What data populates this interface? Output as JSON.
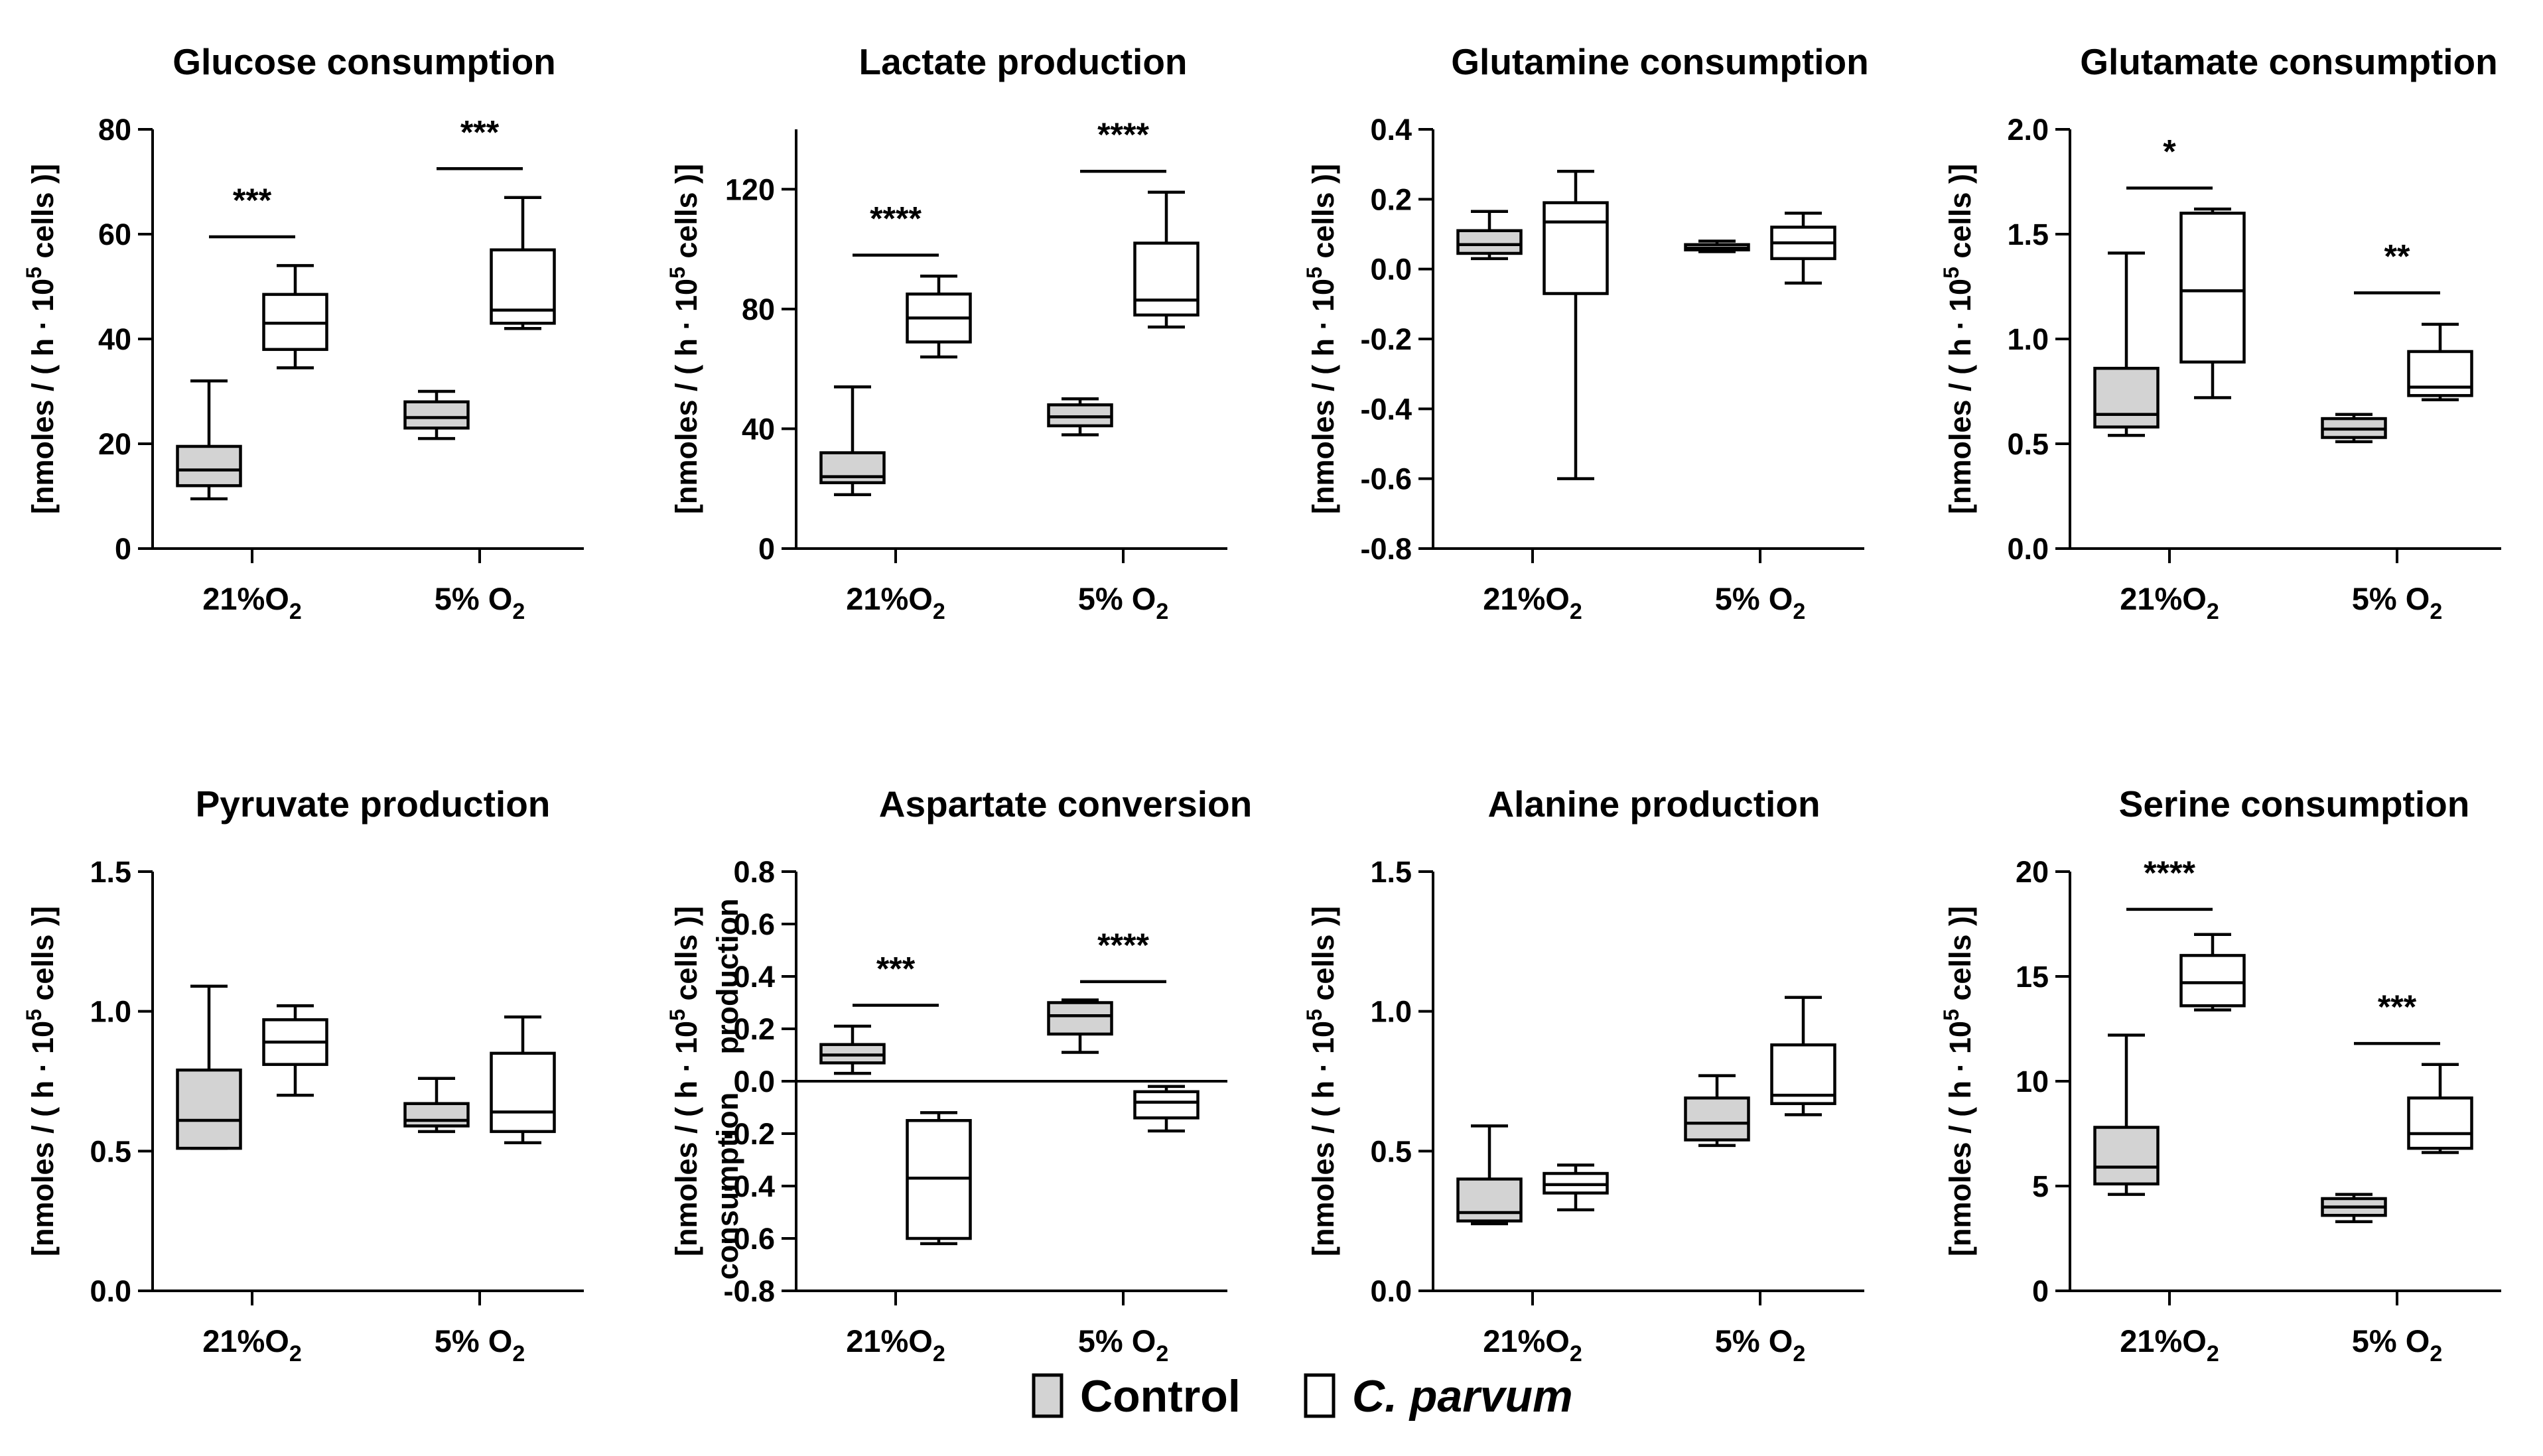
{
  "legend": {
    "control_label": "Control",
    "cparvum_label": "C. parvum",
    "control_color": "#d3d3d3",
    "cparvum_color": "#ffffff"
  },
  "chart_data": [
    {
      "type": "boxplot",
      "title": "Glucose consumption",
      "ylabel": "[nmoles / ( h · 10^5 cells )]",
      "ylim": [
        0,
        80
      ],
      "yticks": [
        0,
        20,
        40,
        60,
        80
      ],
      "ytick_labels": [
        "0",
        "20",
        "40",
        "60",
        "80"
      ],
      "categories": [
        "21%O2",
        "5% O2"
      ],
      "series": [
        {
          "name": "Control",
          "boxes": [
            {
              "min": 9.5,
              "q1": 12,
              "median": 15,
              "q3": 19.5,
              "max": 32
            },
            {
              "min": 21,
              "q1": 23,
              "median": 25,
              "q3": 28,
              "max": 30
            }
          ]
        },
        {
          "name": "C. parvum",
          "boxes": [
            {
              "min": 34.5,
              "q1": 38,
              "median": 43,
              "q3": 48.5,
              "max": 54
            },
            {
              "min": 42,
              "q1": 43,
              "median": 45.5,
              "q3": 57,
              "max": 67
            }
          ]
        }
      ],
      "significance": [
        {
          "category": 0,
          "label": "***",
          "y": 59.5
        },
        {
          "category": 1,
          "label": "***",
          "y": 72.5
        }
      ],
      "zero_line": false
    },
    {
      "type": "boxplot",
      "title": "Lactate production",
      "ylabel": "[nmoles / ( h · 10^5 cells )]",
      "ylim": [
        0,
        140
      ],
      "yticks": [
        0,
        40,
        80,
        120
      ],
      "ytick_labels": [
        "0",
        "40",
        "80",
        "120"
      ],
      "categories": [
        "21%O2",
        "5% O2"
      ],
      "series": [
        {
          "name": "Control",
          "boxes": [
            {
              "min": 18,
              "q1": 22,
              "median": 24,
              "q3": 32,
              "max": 54
            },
            {
              "min": 38,
              "q1": 41,
              "median": 44,
              "q3": 48,
              "max": 50
            }
          ]
        },
        {
          "name": "C. parvum",
          "boxes": [
            {
              "min": 64,
              "q1": 69,
              "median": 77,
              "q3": 85,
              "max": 91
            },
            {
              "min": 74,
              "q1": 78,
              "median": 83,
              "q3": 102,
              "max": 119
            }
          ]
        }
      ],
      "significance": [
        {
          "category": 0,
          "label": "****",
          "y": 98
        },
        {
          "category": 1,
          "label": "****",
          "y": 126
        }
      ],
      "zero_line": false
    },
    {
      "type": "boxplot",
      "title": "Glutamine consumption",
      "ylabel": "[nmoles / ( h · 10^5 cells )]",
      "ylim": [
        -0.8,
        0.4
      ],
      "yticks": [
        -0.8,
        -0.6,
        -0.4,
        -0.2,
        0.0,
        0.2,
        0.4
      ],
      "ytick_labels": [
        "-0.8",
        "-0.6",
        "-0.4",
        "-0.2",
        "0.0",
        "0.2",
        "0.4"
      ],
      "categories": [
        "21%O2",
        "5% O2"
      ],
      "series": [
        {
          "name": "Control",
          "boxes": [
            {
              "min": 0.03,
              "q1": 0.045,
              "median": 0.07,
              "q3": 0.11,
              "max": 0.165
            },
            {
              "min": 0.05,
              "q1": 0.055,
              "median": 0.06,
              "q3": 0.07,
              "max": 0.08
            }
          ]
        },
        {
          "name": "C. parvum",
          "boxes": [
            {
              "min": -0.6,
              "q1": -0.07,
              "median": 0.135,
              "q3": 0.19,
              "max": 0.28
            },
            {
              "min": -0.04,
              "q1": 0.03,
              "median": 0.075,
              "q3": 0.12,
              "max": 0.16
            }
          ]
        }
      ],
      "significance": [],
      "zero_line": false
    },
    {
      "type": "boxplot",
      "title": "Glutamate consumption",
      "ylabel": "[nmoles / ( h · 10^5 cells )]",
      "ylim": [
        0,
        2.0
      ],
      "yticks": [
        0,
        0.5,
        1.0,
        1.5,
        2.0
      ],
      "ytick_labels": [
        "0.0",
        "0.5",
        "1.0",
        "1.5",
        "2.0"
      ],
      "categories": [
        "21%O2",
        "5% O2"
      ],
      "series": [
        {
          "name": "Control",
          "boxes": [
            {
              "min": 0.54,
              "q1": 0.58,
              "median": 0.64,
              "q3": 0.86,
              "max": 1.41
            },
            {
              "min": 0.51,
              "q1": 0.53,
              "median": 0.57,
              "q3": 0.62,
              "max": 0.64
            }
          ]
        },
        {
          "name": "C. parvum",
          "boxes": [
            {
              "min": 0.72,
              "q1": 0.89,
              "median": 1.23,
              "q3": 1.6,
              "max": 1.62
            },
            {
              "min": 0.71,
              "q1": 0.73,
              "median": 0.77,
              "q3": 0.94,
              "max": 1.07
            }
          ]
        }
      ],
      "significance": [
        {
          "category": 0,
          "label": "*",
          "y": 1.72
        },
        {
          "category": 1,
          "label": "**",
          "y": 1.22
        }
      ],
      "zero_line": false
    },
    {
      "type": "boxplot",
      "title": "Pyruvate production",
      "ylabel": "[nmoles / ( h · 10^5 cells )]",
      "ylim": [
        0,
        1.5
      ],
      "yticks": [
        0,
        0.5,
        1.0,
        1.5
      ],
      "ytick_labels": [
        "0.0",
        "0.5",
        "1.0",
        "1.5"
      ],
      "categories": [
        "21%O2",
        "5% O2"
      ],
      "series": [
        {
          "name": "Control",
          "boxes": [
            {
              "min": 0.51,
              "q1": 0.51,
              "median": 0.61,
              "q3": 0.79,
              "max": 1.09
            },
            {
              "min": 0.57,
              "q1": 0.59,
              "median": 0.61,
              "q3": 0.67,
              "max": 0.76
            }
          ]
        },
        {
          "name": "C. parvum",
          "boxes": [
            {
              "min": 0.7,
              "q1": 0.81,
              "median": 0.89,
              "q3": 0.97,
              "max": 1.02
            },
            {
              "min": 0.53,
              "q1": 0.57,
              "median": 0.64,
              "q3": 0.85,
              "max": 0.98
            }
          ]
        }
      ],
      "significance": [],
      "zero_line": false
    },
    {
      "type": "boxplot",
      "title": "Aspartate conversion",
      "ylabel": "[nmoles / ( h · 10^5 cells )]",
      "ylabel_upper": "production",
      "ylabel_lower": "consumption",
      "ylim": [
        -0.8,
        0.8
      ],
      "yticks": [
        -0.8,
        -0.6,
        -0.4,
        -0.2,
        0.0,
        0.2,
        0.4,
        0.6,
        0.8
      ],
      "ytick_labels": [
        "-0.8",
        "-0.6",
        "-0.4",
        "-0.2",
        "0.0",
        "0.2",
        "0.4",
        "0.6",
        "0.8"
      ],
      "categories": [
        "21%O2",
        "5% O2"
      ],
      "series": [
        {
          "name": "Control",
          "boxes": [
            {
              "min": 0.03,
              "q1": 0.07,
              "median": 0.1,
              "q3": 0.14,
              "max": 0.21
            },
            {
              "min": 0.11,
              "q1": 0.18,
              "median": 0.25,
              "q3": 0.3,
              "max": 0.31
            }
          ]
        },
        {
          "name": "C. parvum",
          "boxes": [
            {
              "min": -0.62,
              "q1": -0.6,
              "median": -0.37,
              "q3": -0.15,
              "max": -0.12
            },
            {
              "min": -0.19,
              "q1": -0.14,
              "median": -0.08,
              "q3": -0.04,
              "max": -0.02
            }
          ]
        }
      ],
      "significance": [
        {
          "category": 0,
          "label": "***",
          "y": 0.29
        },
        {
          "category": 1,
          "label": "****",
          "y": 0.38
        }
      ],
      "zero_line": true
    },
    {
      "type": "boxplot",
      "title": "Alanine production",
      "ylabel": "[nmoles / ( h · 10^5 cells )]",
      "ylim": [
        0,
        1.5
      ],
      "yticks": [
        0,
        0.5,
        1.0,
        1.5
      ],
      "ytick_labels": [
        "0.0",
        "0.5",
        "1.0",
        "1.5"
      ],
      "categories": [
        "21%O2",
        "5% O2"
      ],
      "series": [
        {
          "name": "Control",
          "boxes": [
            {
              "min": 0.24,
              "q1": 0.25,
              "median": 0.28,
              "q3": 0.4,
              "max": 0.59
            },
            {
              "min": 0.52,
              "q1": 0.54,
              "median": 0.6,
              "q3": 0.69,
              "max": 0.77
            }
          ]
        },
        {
          "name": "C. parvum",
          "boxes": [
            {
              "min": 0.29,
              "q1": 0.35,
              "median": 0.38,
              "q3": 0.42,
              "max": 0.45
            },
            {
              "min": 0.63,
              "q1": 0.67,
              "median": 0.7,
              "q3": 0.88,
              "max": 1.05
            }
          ]
        }
      ],
      "significance": [],
      "zero_line": false
    },
    {
      "type": "boxplot",
      "title": "Serine consumption",
      "ylabel": "[nmoles / ( h · 10^5 cells )]",
      "ylim": [
        0,
        20
      ],
      "yticks": [
        0,
        5,
        10,
        15,
        20
      ],
      "ytick_labels": [
        "0",
        "5",
        "10",
        "15",
        "20"
      ],
      "categories": [
        "21%O2",
        "5% O2"
      ],
      "series": [
        {
          "name": "Control",
          "boxes": [
            {
              "min": 4.6,
              "q1": 5.1,
              "median": 5.9,
              "q3": 7.8,
              "max": 12.2
            },
            {
              "min": 3.3,
              "q1": 3.6,
              "median": 4.0,
              "q3": 4.4,
              "max": 4.6
            }
          ]
        },
        {
          "name": "C. parvum",
          "boxes": [
            {
              "min": 13.4,
              "q1": 13.6,
              "median": 14.7,
              "q3": 16.0,
              "max": 17.0
            },
            {
              "min": 6.6,
              "q1": 6.8,
              "median": 7.5,
              "q3": 9.2,
              "max": 10.8
            }
          ]
        }
      ],
      "significance": [
        {
          "category": 0,
          "label": "****",
          "y": 18.2
        },
        {
          "category": 1,
          "label": "***",
          "y": 11.8
        }
      ],
      "zero_line": false
    }
  ]
}
